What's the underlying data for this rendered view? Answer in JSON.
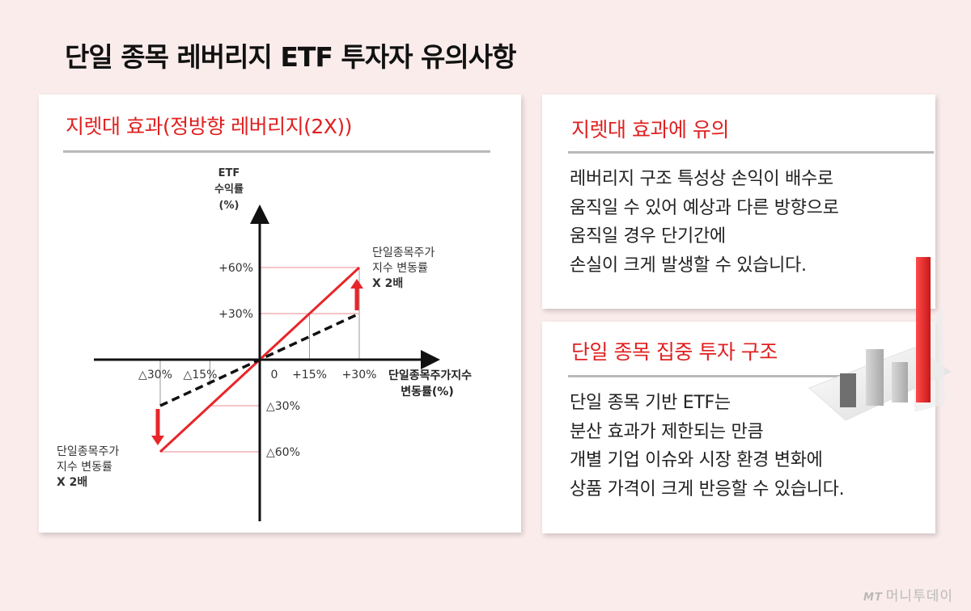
{
  "title": "단일 종목 레버리지 ETF 투자자 유의사항",
  "left_panel": {
    "title": "지렛대 효과(정방향 레버리지(2X))"
  },
  "chart_data": {
    "type": "line",
    "y_axis_label": [
      "ETF",
      "수익률",
      "(%)"
    ],
    "x_axis_label": [
      "단일종목주가지수",
      "변동률(%)"
    ],
    "xlim": [
      -30,
      30
    ],
    "ylim": [
      -60,
      60
    ],
    "x_ticks": [
      "△30%",
      "△15%",
      "0",
      "+15%",
      "+30%"
    ],
    "y_ticks": [
      "+60%",
      "+30%",
      "△30%",
      "△60%"
    ],
    "series": [
      {
        "name": "",
        "style": "solid",
        "color": "#e8262a",
        "x": [
          -30,
          0,
          30
        ],
        "y": [
          -60,
          0,
          60
        ]
      },
      {
        "name": "",
        "style": "dashed",
        "color": "#111111",
        "x": [
          -30,
          0,
          30
        ],
        "y": [
          -30,
          0,
          30
        ]
      }
    ],
    "annotations": [
      {
        "lines": [
          "단일종목주가",
          "지수 변동률",
          "X 2배"
        ],
        "position": "upper-right"
      },
      {
        "lines": [
          "단일종목주가",
          "지수 변동률",
          "X 2배"
        ],
        "position": "lower-left"
      }
    ]
  },
  "box1": {
    "title": "지렛대 효과에 유의",
    "lines": [
      "레버리지 구조 특성상 손익이 배수로",
      "움직일 수 있어 예상과 다른 방향으로",
      "움직일 경우 단기간에",
      "손실이 크게 발생할 수 있습니다."
    ]
  },
  "box2": {
    "title": "단일 종목 집중 투자 구조",
    "lines": [
      "단일 종목 기반 ETF는",
      "분산 효과가 제한되는 만큼",
      "개별 기업 이슈와 시장 환경 변화에",
      "상품 가격이 크게 반응할 수 있습니다."
    ]
  },
  "watermark": {
    "mark": "MT",
    "name": "머니투데이"
  },
  "colors": {
    "accent": "#e02020",
    "background": "#fbecec"
  }
}
